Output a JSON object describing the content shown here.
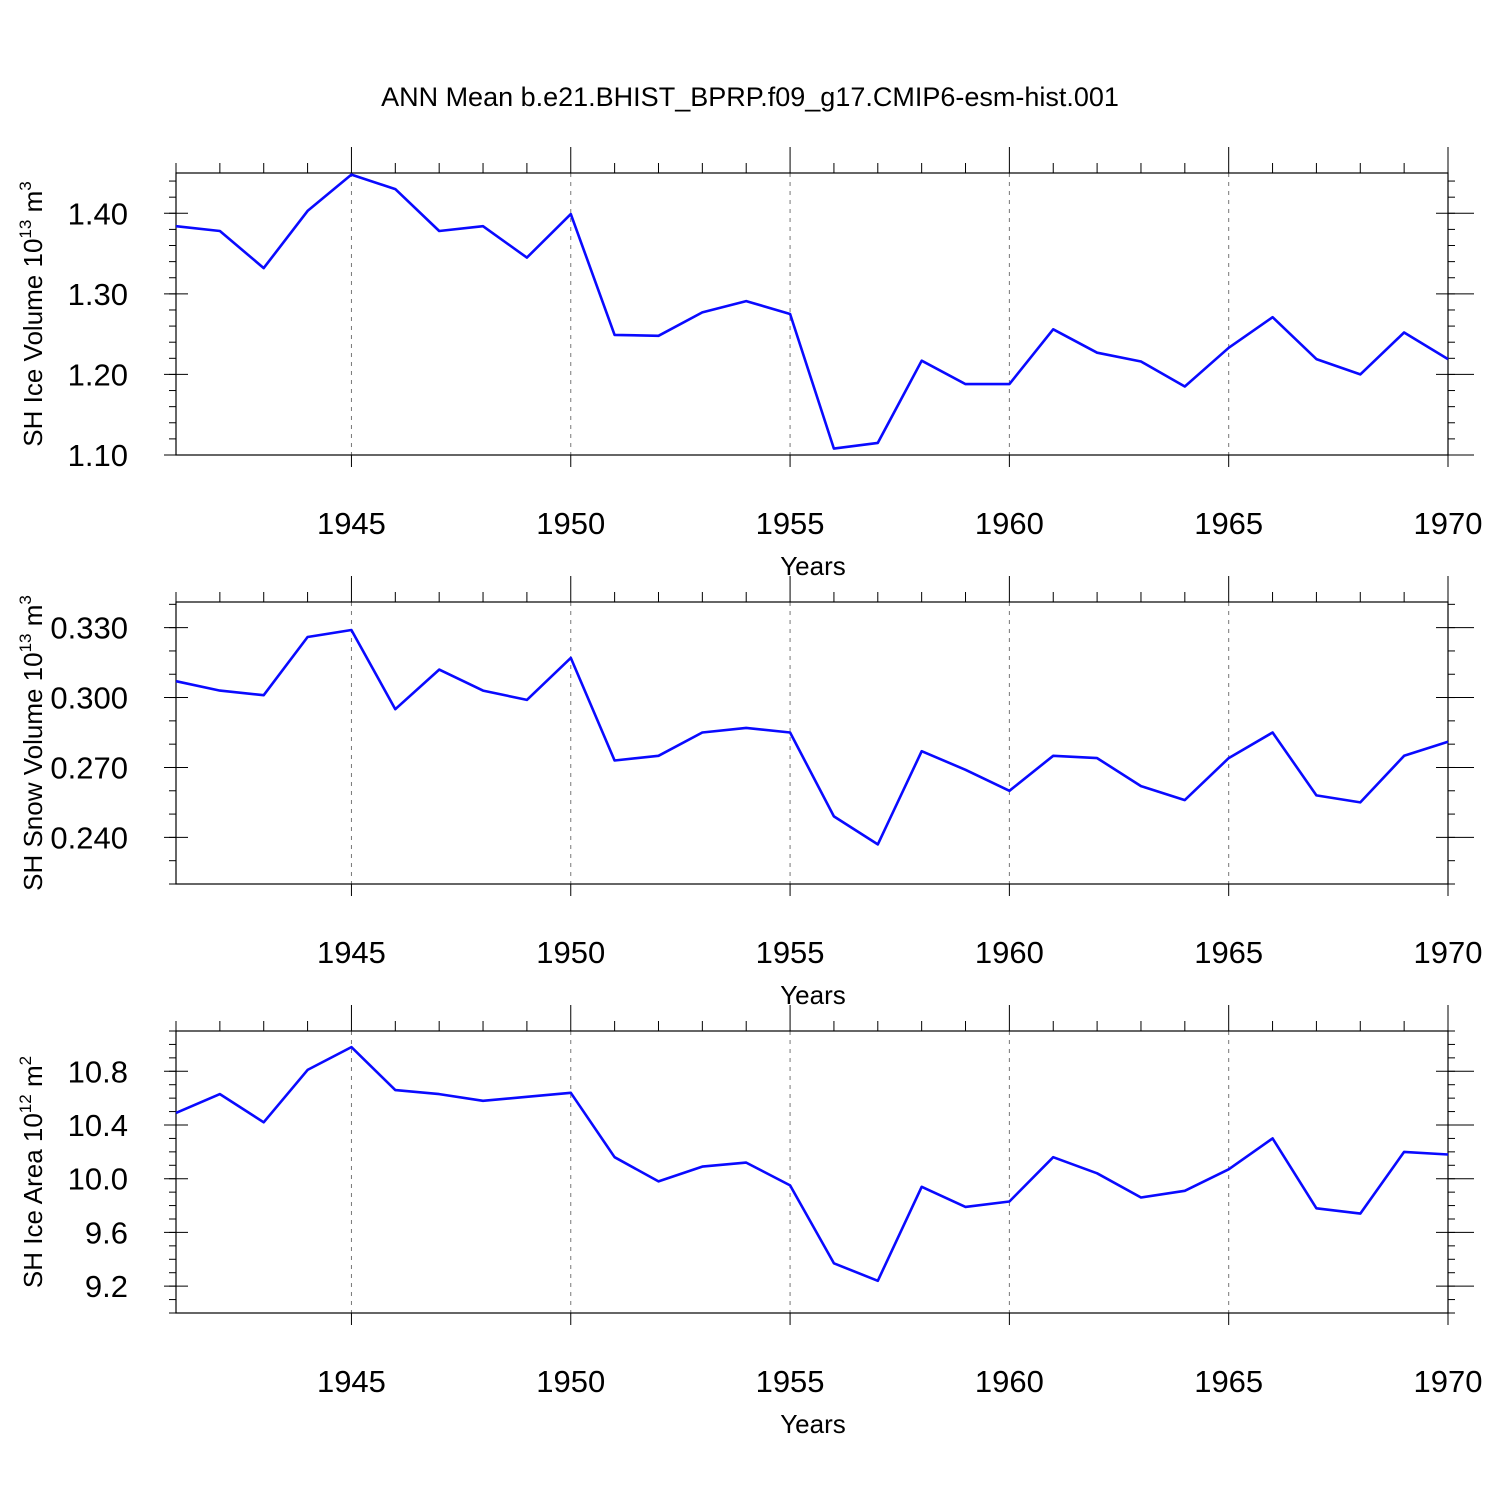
{
  "title": "ANN Mean b.e21.BHIST_BPRP.f09_g17.CMIP6-esm-hist.001",
  "colors": {
    "line": "#0a0aff",
    "axis": "#000000",
    "grid": "#000000"
  },
  "chart_data": [
    {
      "type": "line",
      "ylabel": {
        "prefix": "SH Ice Volume 10",
        "sup": "13",
        "unit": " m",
        "unit_sup": "3"
      },
      "xlabel": "Years",
      "xlim": [
        1941,
        1970
      ],
      "ylim": [
        1.1,
        1.45
      ],
      "yticks": [
        1.1,
        1.2,
        1.3,
        1.4
      ],
      "ytick_labels": [
        "1.10",
        "1.20",
        "1.30",
        "1.40"
      ],
      "y_minor_step": 0.02,
      "xticks": [
        1945,
        1950,
        1955,
        1960,
        1965,
        1970
      ],
      "xtick_labels": [
        "1945",
        "1950",
        "1955",
        "1960",
        "1965",
        "1970"
      ],
      "grid": "vertical dashed at major x ticks",
      "x": [
        1941,
        1942,
        1943,
        1944,
        1945,
        1946,
        1947,
        1948,
        1949,
        1950,
        1951,
        1952,
        1953,
        1954,
        1955,
        1956,
        1957,
        1958,
        1959,
        1960,
        1961,
        1962,
        1963,
        1964,
        1965,
        1966,
        1967,
        1968,
        1969,
        1970
      ],
      "values": [
        1.384,
        1.378,
        1.332,
        1.403,
        1.448,
        1.43,
        1.378,
        1.384,
        1.345,
        1.399,
        1.249,
        1.248,
        1.277,
        1.291,
        1.275,
        1.108,
        1.115,
        1.217,
        1.188,
        1.188,
        1.256,
        1.227,
        1.216,
        1.185,
        1.233,
        1.271,
        1.219,
        1.2,
        1.252,
        1.219
      ]
    },
    {
      "type": "line",
      "ylabel": {
        "prefix": "SH Snow Volume 10",
        "sup": "13",
        "unit": " m",
        "unit_sup": "3"
      },
      "xlabel": "Years",
      "xlim": [
        1941,
        1970
      ],
      "ylim": [
        0.22,
        0.341
      ],
      "yticks": [
        0.24,
        0.27,
        0.3,
        0.33
      ],
      "ytick_labels": [
        "0.240",
        "0.270",
        "0.300",
        "0.330"
      ],
      "y_minor_step": 0.01,
      "xticks": [
        1945,
        1950,
        1955,
        1960,
        1965,
        1970
      ],
      "xtick_labels": [
        "1945",
        "1950",
        "1955",
        "1960",
        "1965",
        "1970"
      ],
      "grid": "vertical dashed at major x ticks",
      "x": [
        1941,
        1942,
        1943,
        1944,
        1945,
        1946,
        1947,
        1948,
        1949,
        1950,
        1951,
        1952,
        1953,
        1954,
        1955,
        1956,
        1957,
        1958,
        1959,
        1960,
        1961,
        1962,
        1963,
        1964,
        1965,
        1966,
        1967,
        1968,
        1969,
        1970
      ],
      "values": [
        0.307,
        0.303,
        0.301,
        0.326,
        0.329,
        0.295,
        0.312,
        0.303,
        0.299,
        0.317,
        0.273,
        0.275,
        0.285,
        0.287,
        0.285,
        0.249,
        0.237,
        0.277,
        0.269,
        0.26,
        0.275,
        0.274,
        0.262,
        0.256,
        0.274,
        0.285,
        0.258,
        0.255,
        0.275,
        0.281
      ]
    },
    {
      "type": "line",
      "ylabel": {
        "prefix": "SH Ice Area 10",
        "sup": "12",
        "unit": " m",
        "unit_sup": "2"
      },
      "xlabel": "Years",
      "xlim": [
        1941,
        1970
      ],
      "ylim": [
        9.0,
        11.1
      ],
      "yticks": [
        9.2,
        9.6,
        10.0,
        10.4,
        10.8
      ],
      "ytick_labels": [
        "9.2",
        "9.6",
        "10.0",
        "10.4",
        "10.8"
      ],
      "y_minor_step": 0.1,
      "xticks": [
        1945,
        1950,
        1955,
        1960,
        1965,
        1970
      ],
      "xtick_labels": [
        "1945",
        "1950",
        "1955",
        "1960",
        "1965",
        "1970"
      ],
      "grid": "vertical dashed at major x ticks",
      "x": [
        1941,
        1942,
        1943,
        1944,
        1945,
        1946,
        1947,
        1948,
        1949,
        1950,
        1951,
        1952,
        1953,
        1954,
        1955,
        1956,
        1957,
        1958,
        1959,
        1960,
        1961,
        1962,
        1963,
        1964,
        1965,
        1966,
        1967,
        1968,
        1969,
        1970
      ],
      "values": [
        10.49,
        10.63,
        10.42,
        10.81,
        10.98,
        10.66,
        10.63,
        10.58,
        10.61,
        10.64,
        10.16,
        9.98,
        10.09,
        10.12,
        9.95,
        9.37,
        9.24,
        9.94,
        9.79,
        9.83,
        10.16,
        10.04,
        9.86,
        9.91,
        10.07,
        10.3,
        9.78,
        9.74,
        10.2,
        10.18
      ]
    }
  ]
}
